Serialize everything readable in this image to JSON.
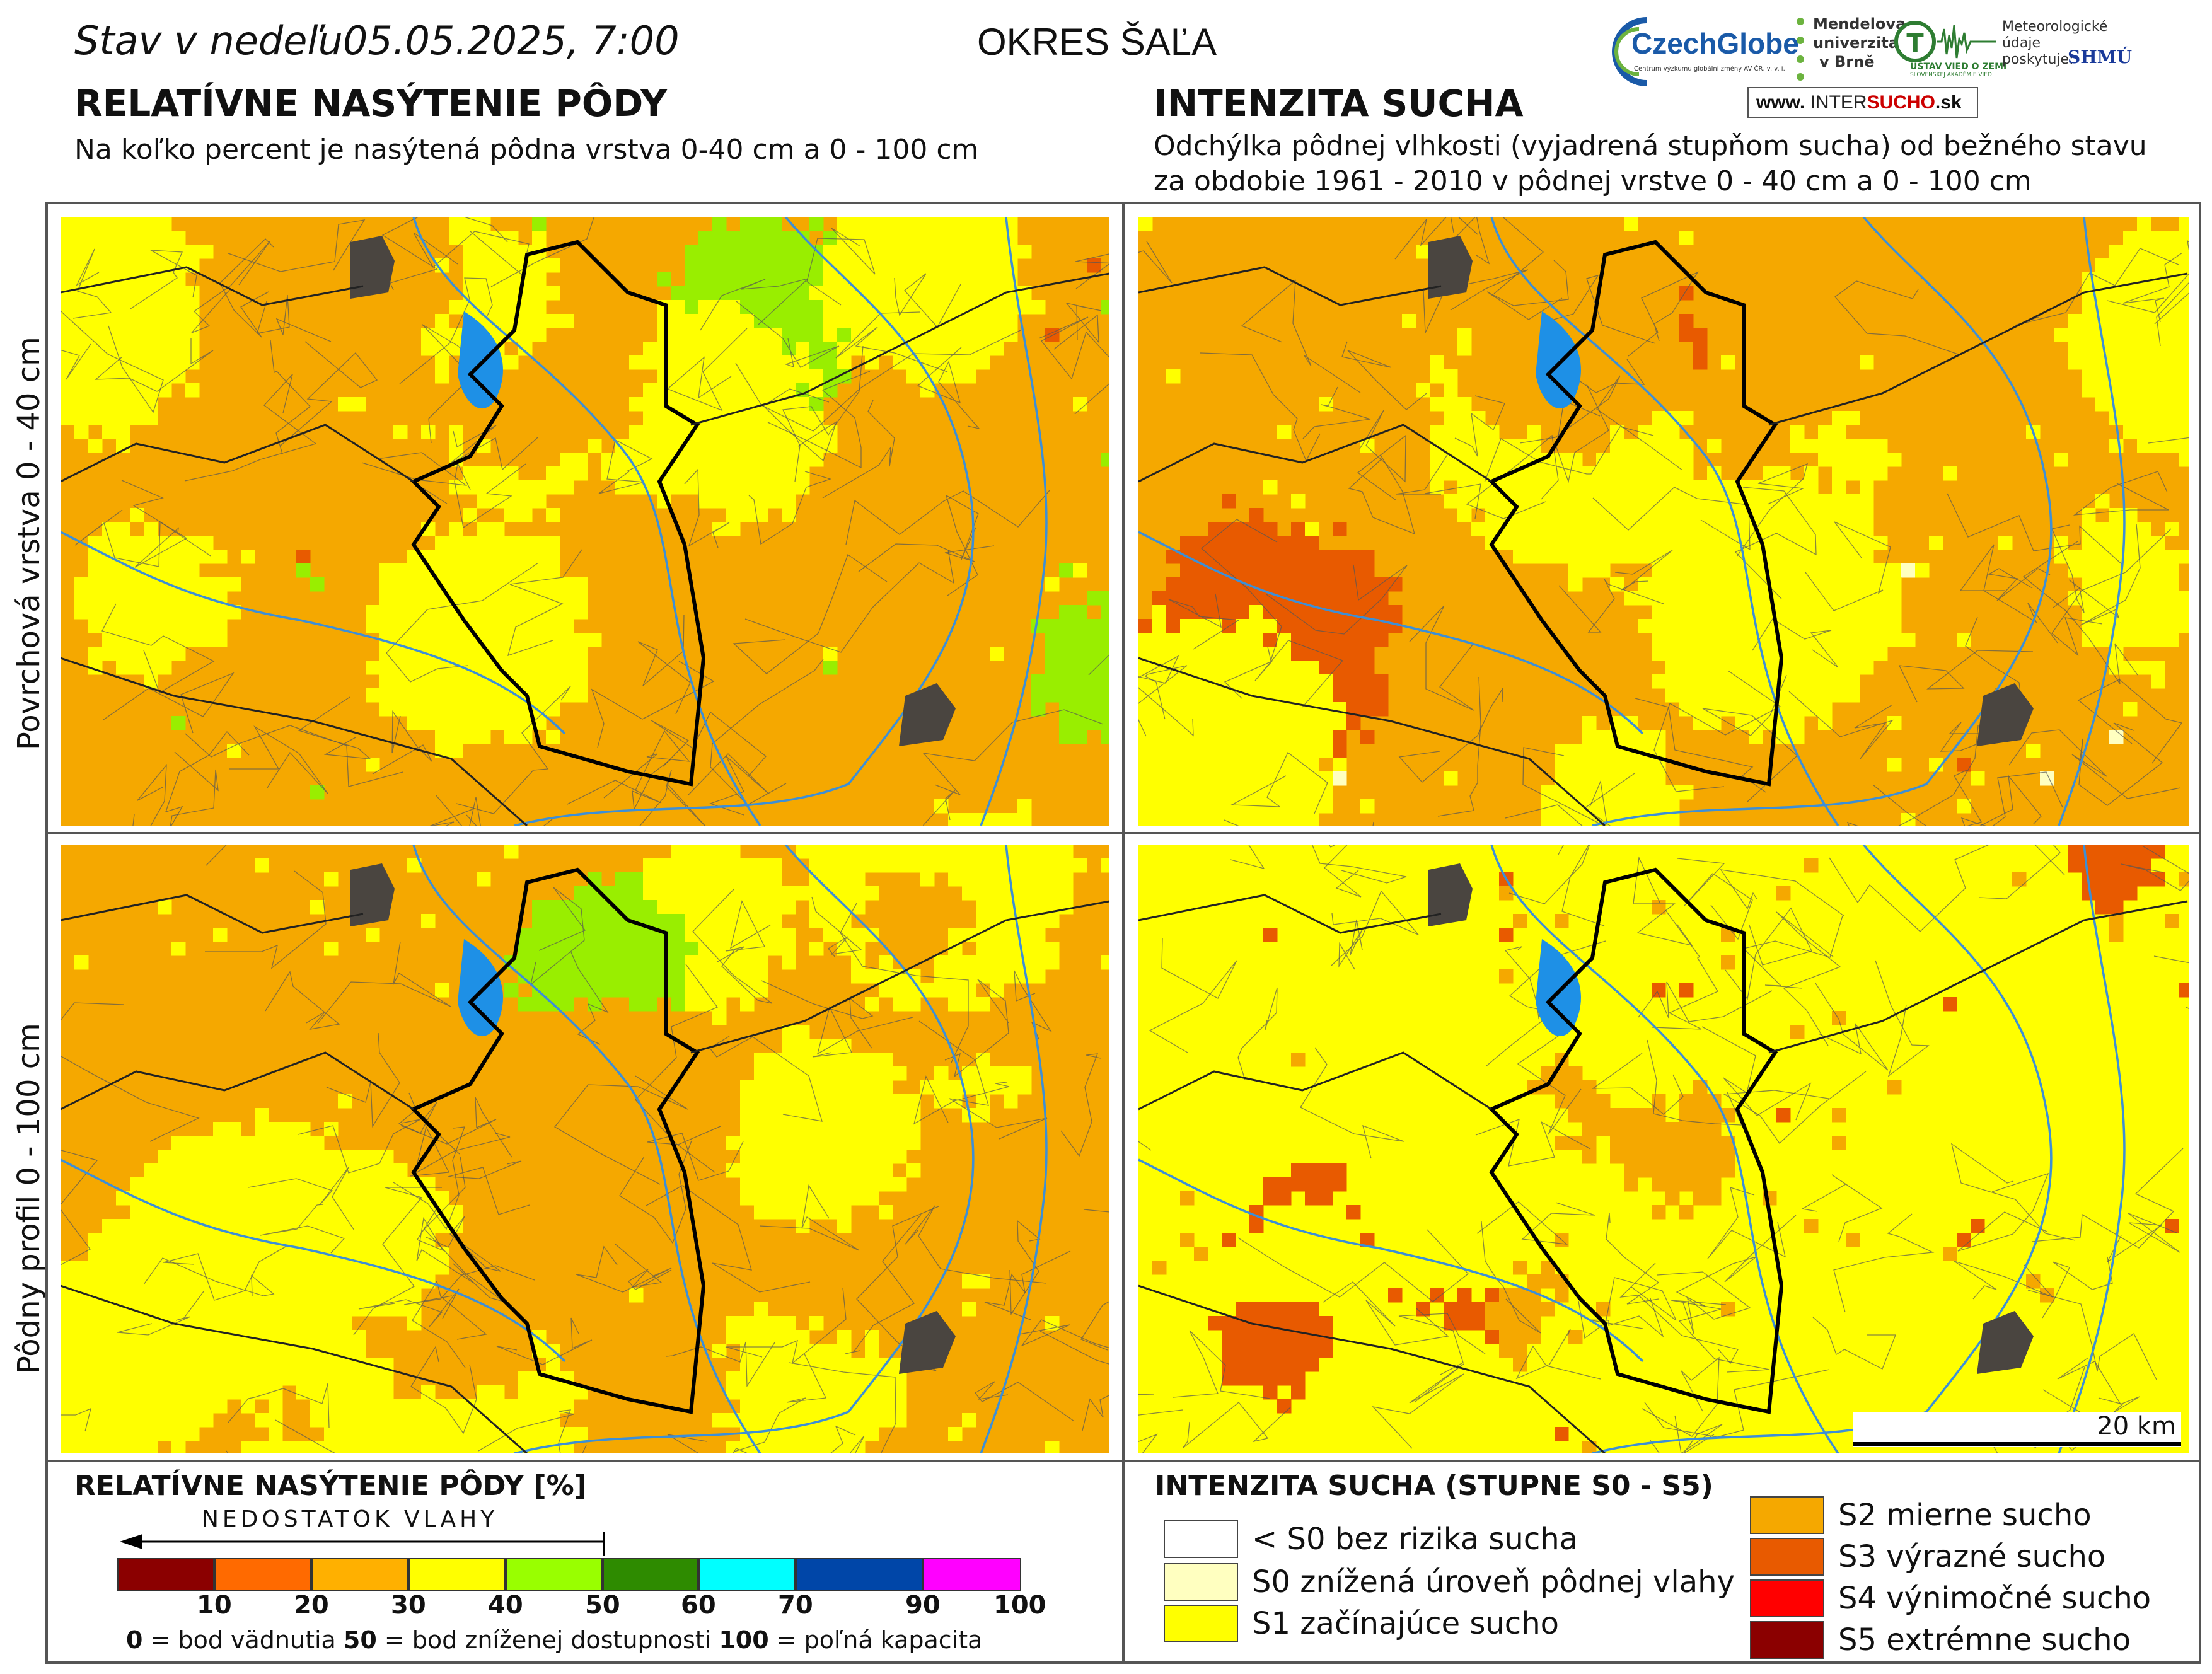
{
  "header": {
    "status_prefix": "Stav v nedeľu",
    "datetime": "05.05.2025, 7:00",
    "district": "OKRES  ŠAĽA",
    "logos": {
      "czechglobe": "CzechGlobe",
      "czechglobe_sub": "Centrum výzkumu globální změny AV ČR, v. v. i.",
      "mendelu_line1": "Mendelova",
      "mendelu_line2": "univerzita",
      "mendelu_line3": "v Brně",
      "ustav": "ÚSTAV VIED O ZEMI",
      "ustav_sub": "SLOVENSKEJ AKADÉMIE VIED",
      "meteo_line1": "Meteorologické",
      "meteo_line2": "údaje",
      "meteo_line3": "poskytuje:",
      "shmu": "SHMÚ",
      "intersucho_prefix": "www.",
      "intersucho_a": "INTER",
      "intersucho_b": "SUCHO",
      "intersucho_suffix": ".sk"
    }
  },
  "left_section": {
    "title": "RELATÍVNE NASÝTENIE PÔDY",
    "subtitle": "Na koľko percent je nasýtená pôdna vrstva 0-40 cm a 0 - 100 cm"
  },
  "right_section": {
    "title": "INTENZITA SUCHA",
    "subtitle_line1": "Odchýlka pôdnej vlhkosti (vyjadrená stupňom sucha) od bežného stavu",
    "subtitle_line2": "za obdobie 1961 - 2010 v pôdnej vrstve 0 - 40 cm a 0 - 100 cm"
  },
  "row_labels": {
    "top": "Povrchová vrstva 0 - 40 cm",
    "bottom": "Pôdny profil 0 - 100 cm"
  },
  "scalebar": {
    "label": "20 km"
  },
  "legend_saturation": {
    "title": "RELATÍVNE NASÝTENIE PÔDY [%]",
    "arrow_label": "NEDOSTATOK VLAHY",
    "colors": [
      "#8b0000",
      "#ff6a00",
      "#ffb000",
      "#ffff00",
      "#99ff00",
      "#2e8b00",
      "#00ffff",
      "#0046a8",
      "#ff00ff"
    ],
    "ticks": [
      "10",
      "20",
      "30",
      "40",
      "50",
      "60",
      "70",
      "90",
      "100"
    ],
    "note_n1": "0",
    "note_t1": " = bod vädnutia",
    "note_n2": "50",
    "note_t2": " = bod zníženej dostupnosti",
    "note_n3": "100",
    "note_t3": " = poľná kapacita"
  },
  "legend_drought": {
    "title": "INTENZITA SUCHA (STUPNE S0 - S5)",
    "classes": [
      {
        "label": "< S0 bez rizika sucha",
        "color": "#ffffff"
      },
      {
        "label": "S0 znížená úroveň pôdnej vlahy",
        "color": "#ffffc0"
      },
      {
        "label": "S1 začínajúce sucho",
        "color": "#ffff00"
      },
      {
        "label": "S2 mierne sucho",
        "color": "#f5a800"
      },
      {
        "label": "S3 výrazné sucho",
        "color": "#e85a00"
      },
      {
        "label": "S4 výnimočné sucho",
        "color": "#ff0000"
      },
      {
        "label": "S5 extrémne sucho",
        "color": "#8b0000"
      }
    ]
  },
  "maps": {
    "top_left": {
      "base": "#f5a800",
      "mix": [
        [
          "#f5a800",
          0.74
        ],
        [
          "#ffff00",
          0.18
        ],
        [
          "#e85a00",
          0.03
        ],
        [
          "#99ee00",
          0.05
        ]
      ]
    },
    "top_right": {
      "base": "#f5a800",
      "mix": [
        [
          "#f5a800",
          0.55
        ],
        [
          "#ffff00",
          0.33
        ],
        [
          "#ffffc0",
          0.07
        ],
        [
          "#e85a00",
          0.05
        ]
      ]
    },
    "bottom_left": {
      "base": "#f5a800",
      "mix": [
        [
          "#f5a800",
          0.6
        ],
        [
          "#ffff00",
          0.32
        ],
        [
          "#e85a00",
          0.07
        ],
        [
          "#99ee00",
          0.01
        ]
      ]
    },
    "bottom_right": {
      "base": "#ffff00",
      "mix": [
        [
          "#ffff00",
          0.7
        ],
        [
          "#f5a800",
          0.22
        ],
        [
          "#e85a00",
          0.08
        ]
      ]
    }
  }
}
